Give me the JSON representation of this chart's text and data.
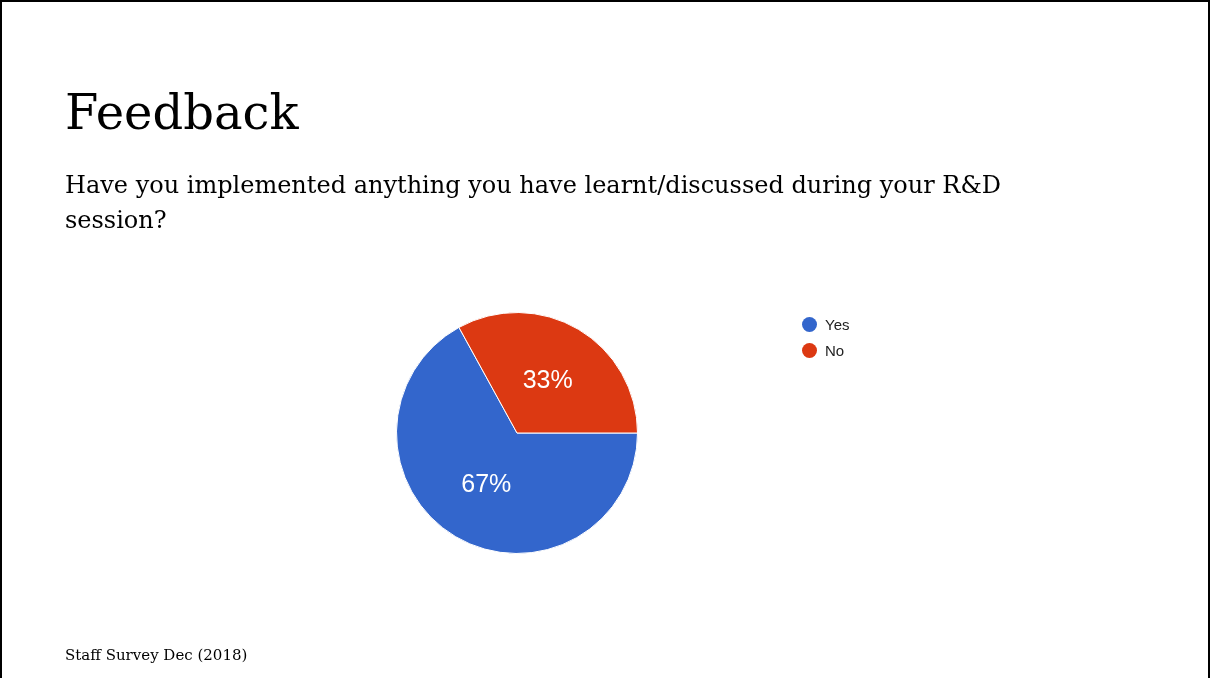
{
  "chart_data": {
    "type": "pie",
    "title": "Feedback",
    "subtitle": "Have you implemented anything you have learnt/discussed during your R&D session?",
    "categories": [
      "Yes",
      "No"
    ],
    "values": [
      67,
      33
    ],
    "colors": [
      "#3366cc",
      "#dc3912"
    ],
    "value_labels": [
      "67%",
      "33%"
    ],
    "legend": "top right",
    "annotations": [
      "Staff Survey Dec (2018)"
    ]
  }
}
